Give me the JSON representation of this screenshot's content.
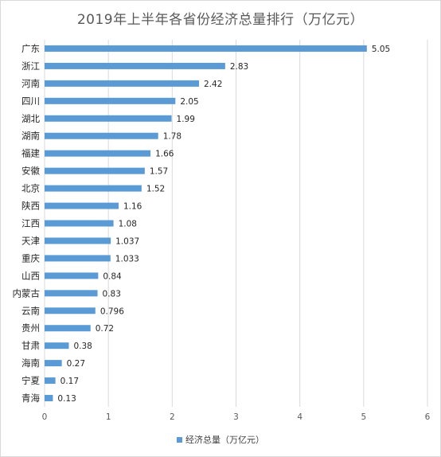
{
  "chart_data": {
    "type": "bar",
    "orientation": "horizontal",
    "title": "2019年上半年各省份经济总量排行（万亿元）",
    "categories": [
      "广东",
      "浙江",
      "河南",
      "四川",
      "湖北",
      "湖南",
      "福建",
      "安徽",
      "北京",
      "陕西",
      "江西",
      "天津",
      "重庆",
      "山西",
      "内蒙古",
      "云南",
      "贵州",
      "甘肃",
      "海南",
      "宁夏",
      "青海"
    ],
    "series": [
      {
        "name": "经济总量（万亿元）",
        "values": [
          5.05,
          2.83,
          2.42,
          2.05,
          1.99,
          1.78,
          1.66,
          1.57,
          1.52,
          1.16,
          1.08,
          1.037,
          1.033,
          0.84,
          0.83,
          0.796,
          0.72,
          0.38,
          0.27,
          0.17,
          0.13
        ],
        "labels": [
          "5.05",
          "2.83",
          "2.42",
          "2.05",
          "1.99",
          "1.78",
          "1.66",
          "1.57",
          "1.52",
          "1.16",
          "1.08",
          "1.037",
          "1.033",
          "0.84",
          "0.83",
          "0.796",
          "0.72",
          "0.38",
          "0.27",
          "0.17",
          "0.13"
        ],
        "color": "#5b9bd5"
      }
    ],
    "xlim": [
      0,
      6
    ],
    "xticks": [
      "0",
      "1",
      "2",
      "3",
      "4",
      "5",
      "6"
    ],
    "grid": true,
    "legend_position": "bottom"
  }
}
